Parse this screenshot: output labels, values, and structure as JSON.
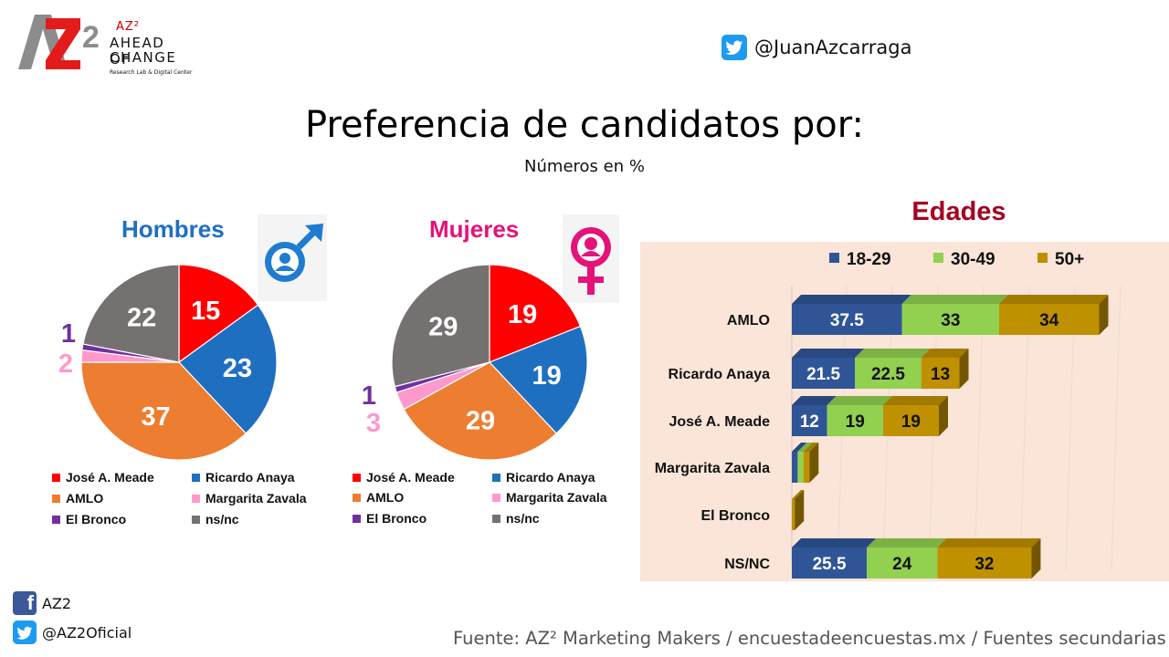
{
  "logo": {
    "brand_small": "AZ²",
    "line1": "AHEAD OF",
    "line2": "CHANGE",
    "tagline": "Research Lab & Digital Center"
  },
  "header": {
    "twitter_handle": "@JuanAzcarraga"
  },
  "title": "Preferencia de candidatos por:",
  "subtitle": "Números en %",
  "colors": {
    "meade": "#ff0000",
    "anaya": "#1f6fc1",
    "amlo": "#ed7d31",
    "zavala": "#ff99cc",
    "bronco": "#7030a0",
    "nsnc": "#767171",
    "age_18_29": "#2f5597",
    "age_30_49": "#92d050",
    "age_50_plus": "#bf9000",
    "panel_bg": "#fae5d8"
  },
  "chart_data": [
    {
      "type": "pie",
      "title": "Hombres",
      "slices": [
        {
          "label": "José A. Meade",
          "value": 15
        },
        {
          "label": "Ricardo Anaya",
          "value": 23
        },
        {
          "label": "AMLO",
          "value": 37
        },
        {
          "label": "Margarita Zavala",
          "value": 2
        },
        {
          "label": "El Bronco",
          "value": 1
        },
        {
          "label": "ns/nc",
          "value": 22
        }
      ]
    },
    {
      "type": "pie",
      "title": "Mujeres",
      "slices": [
        {
          "label": "José A. Meade",
          "value": 19
        },
        {
          "label": "Ricardo Anaya",
          "value": 19
        },
        {
          "label": "AMLO",
          "value": 29
        },
        {
          "label": "Margarita Zavala",
          "value": 3
        },
        {
          "label": "El Bronco",
          "value": 1
        },
        {
          "label": "ns/nc",
          "value": 29
        }
      ]
    },
    {
      "type": "bar",
      "orientation": "horizontal",
      "stacked": true,
      "title": "Edades",
      "categories": [
        "AMLO",
        "Ricardo Anaya",
        "José A. Meade",
        "Margarita Zavala",
        "El Bronco",
        "NS/NC"
      ],
      "series": [
        {
          "name": "18-29",
          "values": [
            37.5,
            21.5,
            12,
            2,
            0,
            25.5
          ]
        },
        {
          "name": "30-49",
          "values": [
            33,
            22.5,
            19,
            2,
            0,
            24
          ]
        },
        {
          "name": "50+",
          "values": [
            34,
            13,
            19,
            2,
            1,
            32
          ]
        }
      ],
      "data_labels": [
        [
          "37.5",
          "21.5",
          "12",
          "",
          "",
          "25.5"
        ],
        [
          "33",
          "22.5",
          "19",
          "",
          "",
          "24"
        ],
        [
          "34",
          "13",
          "19",
          "",
          "",
          "32"
        ]
      ],
      "legend_position": "top",
      "xlim": [
        0,
        110
      ]
    }
  ],
  "footer": {
    "facebook": "AZ2",
    "twitter": "@AZ2Oficial",
    "source": "Fuente: AZ² Marketing Makers / encuestadeencuestas.mx / Fuentes secundarias"
  }
}
